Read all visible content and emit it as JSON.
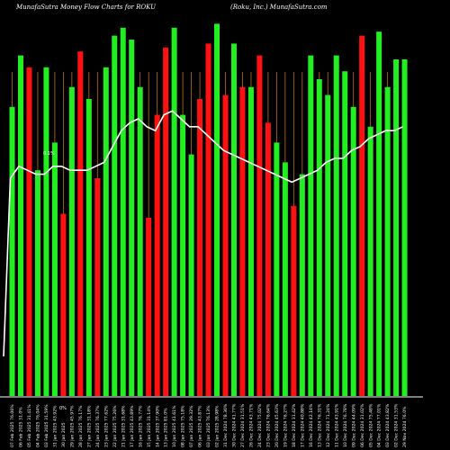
{
  "header": {
    "left": "MunafaSutra  Money Flow  Charts for ROKU",
    "right": "(Roku,  Inc.) MunafaSutra.com"
  },
  "colors": {
    "background": "#000000",
    "inflow": "#22ee22",
    "outflow": "#ff1111",
    "price_line": "#ffffff",
    "grid": "#b8731a"
  },
  "chart_data": {
    "type": "bar",
    "bar_values": [
      73,
      86,
      83,
      57,
      83,
      64,
      46,
      78,
      87,
      75,
      55,
      83,
      91,
      93,
      90,
      78,
      45,
      71,
      88,
      93,
      71,
      61,
      75,
      89,
      94,
      76,
      89,
      78,
      78,
      86,
      69,
      64,
      59,
      48,
      56,
      86,
      80,
      76,
      86,
      82,
      73,
      91,
      68,
      92,
      78,
      85,
      85
    ],
    "bar_dir": [
      "g",
      "g",
      "r",
      "g",
      "g",
      "g",
      "r",
      "g",
      "r",
      "g",
      "r",
      "g",
      "g",
      "g",
      "g",
      "g",
      "r",
      "r",
      "r",
      "g",
      "g",
      "g",
      "r",
      "r",
      "g",
      "r",
      "g",
      "r",
      "g",
      "r",
      "r",
      "g",
      "g",
      "r",
      "g",
      "g",
      "g",
      "g",
      "g",
      "g",
      "g",
      "r",
      "g",
      "g",
      "g",
      "g",
      "g"
    ],
    "price_line": [
      55,
      58,
      57,
      56,
      56,
      58,
      58,
      57,
      57,
      57,
      58,
      59,
      63,
      67,
      69,
      70,
      68,
      67,
      71,
      72,
      70,
      68,
      68,
      66,
      64,
      62,
      61,
      60,
      59,
      58,
      57,
      56,
      55,
      54,
      55,
      56,
      57,
      59,
      60,
      60,
      62,
      63,
      65,
      66,
      67,
      67,
      68
    ],
    "x_labels": [
      "07 Feb 2025 76.06%",
      "06 Feb 2025 31.0%",
      "05 Feb 2025 31.41%",
      "04 Feb 2025 76.04%",
      "03 Feb 2025 31.59%",
      "31 Jan 2025 43.92%",
      "30 Jan 2025",
      "29 Jan 2025 45.97%",
      "28 Jan 2025 76.17%",
      "27 Jan 2025 31.18%",
      "24 Jan 2025 76.37%",
      "23 Jan 2025 77.62%",
      "22 Jan 2025 75.26%",
      "21 Jan 2025 31.68%",
      "17 Jan 2025 43.89%",
      "16 Jan 2025 76.77%",
      "15 Jan 2025 31.14%",
      "14 Jan 2025 37.90%",
      "13 Jan 2025 81.0%",
      "10 Jan 2025 41.61%",
      "08 Jan 2025 75.18%",
      "07 Jan 2025 29.32%",
      "06 Jan 2025 43.87%",
      "03 Jan 2025 76.13%",
      "02 Jan 2025 28.98%",
      "31 Dec 2024 78.36%",
      "30 Dec 2024 41.77%",
      "27 Dec 2024 31.51%",
      "26 Dec 2024 43.71%",
      "24 Dec 2024 75.02%",
      "23 Dec 2024 76.64%",
      "20 Dec 2024 45.63%",
      "19 Dec 2024 76.27%",
      "18 Dec 2024 31.42%",
      "17 Dec 2024 40.88%",
      "16 Dec 2024 42.14%",
      "13 Dec 2024 76.31%",
      "12 Dec 2024 71.24%",
      "11 Dec 2024 43.91%",
      "10 Dec 2024 76.78%",
      "09 Dec 2024 44.09%",
      "06 Dec 2024 31.02%",
      "05 Dec 2024 75.48%",
      "04 Dec 2024 77.01%",
      "03 Dec 2024 43.82%",
      "02 Dec 2024 31.53%",
      "29 Nov 2024 76.0%"
    ],
    "axis_labels": [
      "0.1%",
      "0%"
    ],
    "ylim": [
      0,
      100
    ]
  }
}
